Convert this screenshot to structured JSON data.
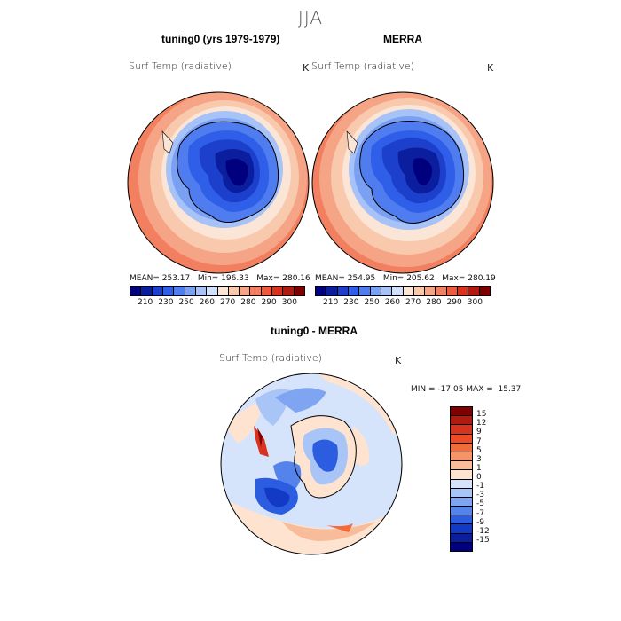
{
  "season": "JJA",
  "panel_left": {
    "title": "tuning0 (yrs 1979-1979)",
    "variable": "Surf Temp (radiative)",
    "unit": "K",
    "stats": "MEAN= 253.17   Min= 196.33   Max= 280.16"
  },
  "panel_right": {
    "title": "MERRA",
    "variable": "Surf Temp (radiative)",
    "unit": "K",
    "stats": "MEAN= 254.95   Min= 205.62   Max= 280.19"
  },
  "panel_diff": {
    "title": "tuning0 - MERRA",
    "variable": "Surf Temp (radiative)",
    "unit": "K",
    "stats": "MIN = -17.05 MAX =  15.37"
  },
  "colorbar_top": {
    "ticks": [
      "210",
      "230",
      "250",
      "260",
      "270",
      "280",
      "290",
      "300"
    ],
    "colors": [
      "#00007f",
      "#0a1e9e",
      "#1c3fcc",
      "#2f5ee8",
      "#4f7df0",
      "#7aa0f4",
      "#a6c2f7",
      "#d2e0fb",
      "#fbe5d6",
      "#f9c9ae",
      "#f6a486",
      "#f28060",
      "#ee5a3c",
      "#d8331f",
      "#b01a0f",
      "#7f0000"
    ]
  },
  "colorbar_diff": {
    "ticks": [
      "15",
      "12",
      "9",
      "7",
      "5",
      "3",
      "1",
      "0",
      "-1",
      "-3",
      "-5",
      "-7",
      "-9",
      "-12",
      "-15"
    ],
    "colors": [
      "#7f0000",
      "#b01a0f",
      "#d8331f",
      "#ee4a25",
      "#f26b3a",
      "#f69468",
      "#f9bc9a",
      "#fde3d0",
      "#d6e4fb",
      "#a9c4f6",
      "#7ea4f2",
      "#5583ec",
      "#2c5de0",
      "#123ac4",
      "#0a1e9e",
      "#00007f"
    ]
  },
  "colors": {
    "antarctic_core": "#00007f",
    "ocean_warm": "#f6a486",
    "ocean_mid": "#fbe5d6",
    "sea_ice": "#7aa0f4"
  }
}
